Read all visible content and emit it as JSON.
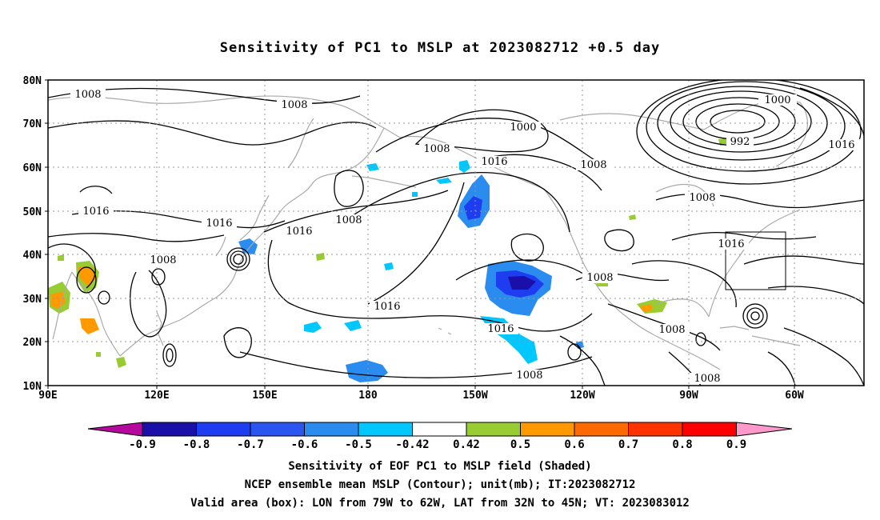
{
  "title": "Sensitivity of PC1 to MSLP at 2023082712 +0.5 day",
  "lat_labels": [
    "80N",
    "70N",
    "60N",
    "50N",
    "40N",
    "30N",
    "20N",
    "10N"
  ],
  "lon_labels": [
    "90E",
    "120E",
    "150E",
    "180",
    "150W",
    "120W",
    "90W",
    "60W"
  ],
  "contour_labels": [
    {
      "text": "1008"
    },
    {
      "text": "1008"
    },
    {
      "text": "1016"
    },
    {
      "text": "1016"
    },
    {
      "text": "1008"
    },
    {
      "text": "1008"
    },
    {
      "text": "1016"
    },
    {
      "text": "1008"
    },
    {
      "text": "1000"
    },
    {
      "text": "1016"
    },
    {
      "text": "1008"
    },
    {
      "text": "1016"
    },
    {
      "text": "1016"
    },
    {
      "text": "1008"
    },
    {
      "text": "1008"
    },
    {
      "text": "1000"
    },
    {
      "text": "992"
    },
    {
      "text": "1016"
    },
    {
      "text": "1008"
    },
    {
      "text": "1016"
    },
    {
      "text": "1008"
    },
    {
      "text": "1008"
    }
  ],
  "colorbar": {
    "labels": [
      "-0.9",
      "-0.8",
      "-0.7",
      "-0.6",
      "-0.5",
      "-0.42",
      "0.42",
      "0.5",
      "0.6",
      "0.7",
      "0.8",
      "0.9"
    ],
    "colors": [
      "#b5089c",
      "#1a0fa8",
      "#1e3cf0",
      "#2a55f0",
      "#2b8cf0",
      "#00c8ff",
      "#ffffff",
      "#99cc33",
      "#ff9900",
      "#ff6a00",
      "#ff3300",
      "#ff0000",
      "#ff99cc"
    ]
  },
  "captions": {
    "line1": "Sensitivity of EOF PC1 to MSLP field (Shaded)",
    "line2": "NCEP ensemble mean MSLP (Contour); unit(mb); IT:2023082712",
    "line3": "Valid area (box): LON from 79W to 62W, LAT from 32N to 45N; VT: 2023083012"
  },
  "colors": {
    "contour": "#000000",
    "coastline": "#aaaaaa",
    "grid": "#999999",
    "neg_shade": "#2255f0",
    "pos_shade": "#99cc33",
    "orange_shade": "#ff9900"
  }
}
